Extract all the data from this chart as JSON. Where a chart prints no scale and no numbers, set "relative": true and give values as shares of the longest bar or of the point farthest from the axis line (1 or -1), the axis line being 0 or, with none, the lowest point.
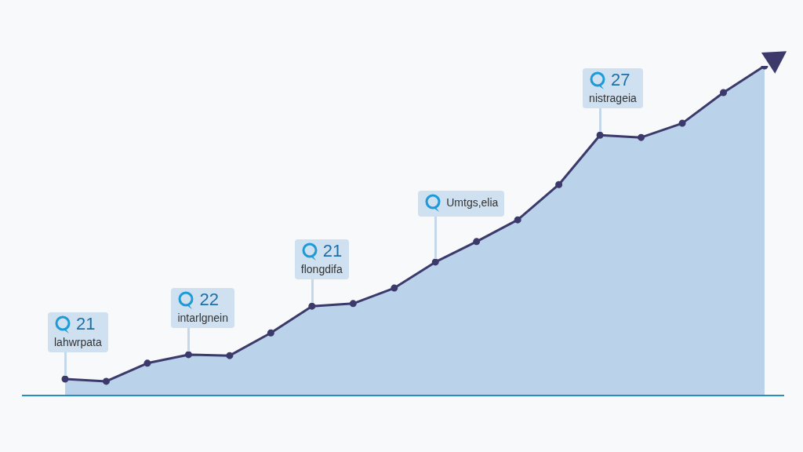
{
  "chart_data": {
    "type": "area",
    "relative": true,
    "categories": [
      null,
      null,
      null,
      null,
      null,
      null,
      null,
      null,
      null,
      null,
      null,
      null,
      null,
      null,
      null,
      null,
      null,
      null
    ],
    "series": [
      {
        "color": "#3b3a6b",
        "values": [
          0.05,
          0.043,
          0.098,
          0.124,
          0.121,
          0.19,
          0.271,
          0.279,
          0.326,
          0.405,
          0.467,
          0.533,
          0.64,
          0.79,
          0.783,
          0.826,
          0.919,
          1
        ]
      }
    ],
    "marker": "circle",
    "legend": false,
    "annotations": [
      {
        "text": "21\nlahwrpata",
        "y": 0.05
      },
      {
        "text": "22\nintarlgnein",
        "y": 0.124
      },
      {
        "text": "21\nflongdifa",
        "y": 0.271
      },
      "Umtgs,elia",
      {
        "text": "27\nnistrageia",
        "y": 0.79
      }
    ]
  }
}
